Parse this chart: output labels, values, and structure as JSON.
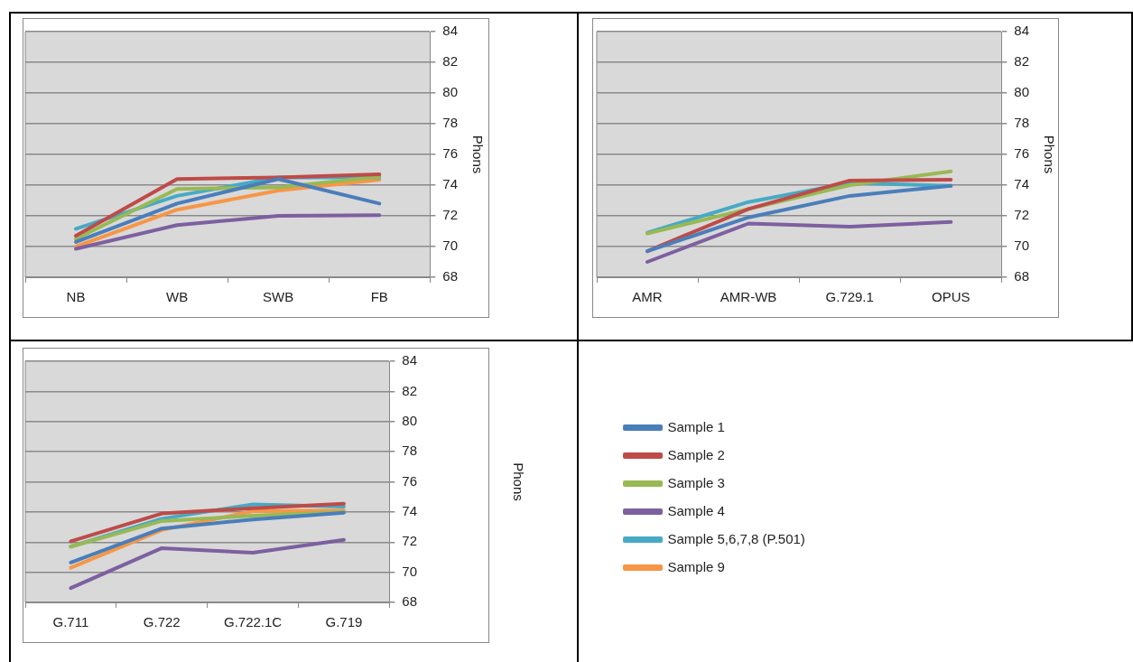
{
  "chart_data": [
    {
      "type": "line",
      "categories": [
        "NB",
        "WB",
        "SWB",
        "FB"
      ],
      "ylabel": "Phons",
      "ylim": [
        68,
        84
      ],
      "yticks": [
        68,
        70,
        72,
        74,
        76,
        78,
        80,
        82,
        84
      ],
      "grid": "y",
      "legend": false,
      "marker": "none",
      "series": [
        {
          "color": "#4a7ebb",
          "values": [
            70.3,
            72.8,
            74.4,
            72.8
          ]
        },
        {
          "color": "#be4b48",
          "values": [
            70.7,
            74.4,
            74.5,
            74.7
          ]
        },
        {
          "color": "#98b954",
          "values": [
            70.5,
            73.75,
            73.85,
            74.55
          ]
        },
        {
          "color": "#7d60a0",
          "values": [
            69.85,
            71.4,
            72.0,
            72.05
          ]
        },
        {
          "color": "#46aac5",
          "values": [
            71.15,
            73.3,
            74.5,
            74.5
          ]
        },
        {
          "color": "#f79646",
          "values": [
            70.0,
            72.4,
            73.65,
            74.35
          ]
        }
      ]
    },
    {
      "type": "line",
      "categories": [
        "AMR",
        "AMR-WB",
        "G.729.1",
        "OPUS"
      ],
      "ylabel": "Phons",
      "ylim": [
        68,
        84
      ],
      "yticks": [
        68,
        70,
        72,
        74,
        76,
        78,
        80,
        82,
        84
      ],
      "grid": "y",
      "legend": false,
      "marker": "none",
      "series": [
        {
          "color": "#4a7ebb",
          "values": [
            69.7,
            71.9,
            73.3,
            73.95
          ]
        },
        {
          "color": "#be4b48",
          "values": [
            69.7,
            72.45,
            74.3,
            74.35
          ]
        },
        {
          "color": "#98b954",
          "values": [
            70.85,
            72.45,
            74.0,
            74.9
          ]
        },
        {
          "color": "#7d60a0",
          "values": [
            69.0,
            71.5,
            71.3,
            71.6
          ]
        },
        {
          "color": "#46aac5",
          "values": [
            70.9,
            72.9,
            74.15,
            73.95
          ]
        }
      ]
    },
    {
      "type": "line",
      "categories": [
        "G.711",
        "G.722",
        "G.722.1C",
        "G.719"
      ],
      "ylabel": "Phons",
      "ylim": [
        68,
        84
      ],
      "yticks": [
        68,
        70,
        72,
        74,
        76,
        78,
        80,
        82,
        84
      ],
      "grid": "y",
      "legend": "right",
      "marker": "none",
      "series": [
        {
          "name": "Sample 1",
          "color": "#4a7ebb",
          "values": [
            70.65,
            72.9,
            73.5,
            73.95
          ]
        },
        {
          "name": "Sample 2",
          "color": "#be4b48",
          "values": [
            72.05,
            73.9,
            74.25,
            74.55
          ]
        },
        {
          "name": "Sample 3",
          "color": "#98b954",
          "values": [
            71.7,
            73.4,
            73.75,
            74.0
          ]
        },
        {
          "name": "Sample 4",
          "color": "#7d60a0",
          "values": [
            68.95,
            71.6,
            71.3,
            72.15
          ]
        },
        {
          "name": "Sample 5,6,7,8 (P.501)",
          "color": "#46aac5",
          "values": [
            71.7,
            73.55,
            74.5,
            74.35
          ]
        },
        {
          "name": "Sample 9",
          "color": "#f79646",
          "values": [
            70.3,
            72.8,
            74.05,
            74.1
          ]
        }
      ]
    }
  ]
}
